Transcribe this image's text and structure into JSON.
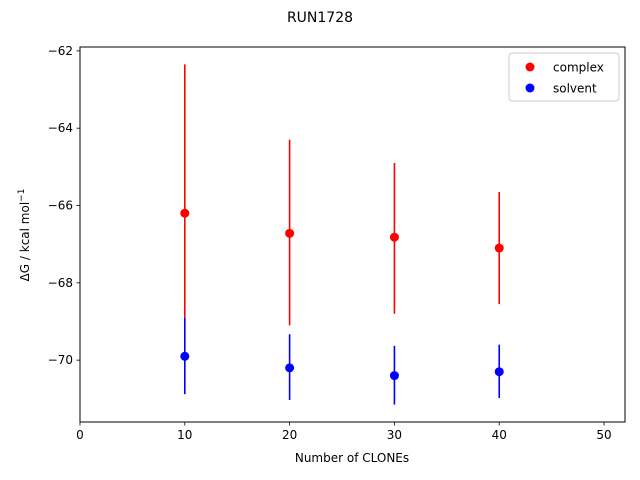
{
  "chart_data": {
    "type": "scatter",
    "title": "RUN1728",
    "xlabel": "Number of CLONEs",
    "ylabel": "ΔG / kcal mol",
    "ylabel_superscript": "−1",
    "xlim": [
      0,
      52
    ],
    "ylim": [
      -71.6,
      -61.9
    ],
    "xticks": [
      0,
      10,
      20,
      30,
      40,
      50
    ],
    "xtick_labels": [
      "0",
      "10",
      "20",
      "30",
      "40",
      "50"
    ],
    "yticks": [
      -70,
      -68,
      -66,
      -64,
      -62
    ],
    "ytick_labels": [
      "−70",
      "−68",
      "−66",
      "−64",
      "−62"
    ],
    "grid": false,
    "legend_position": "top-right",
    "series": [
      {
        "name": "complex",
        "color": "#ff0000",
        "x": [
          10,
          20,
          30,
          40
        ],
        "y": [
          -66.2,
          -66.72,
          -66.82,
          -67.1
        ],
        "err_low": [
          -68.9,
          -69.1,
          -68.8,
          -68.55
        ],
        "err_high": [
          -62.35,
          -64.3,
          -64.9,
          -65.65
        ]
      },
      {
        "name": "solvent",
        "color": "#0000ff",
        "x": [
          10,
          20,
          30,
          40
        ],
        "y": [
          -69.9,
          -70.2,
          -70.4,
          -70.3
        ],
        "err_low": [
          -70.88,
          -71.03,
          -71.15,
          -70.98
        ],
        "err_high": [
          -68.9,
          -69.33,
          -69.63,
          -69.6
        ]
      }
    ]
  }
}
